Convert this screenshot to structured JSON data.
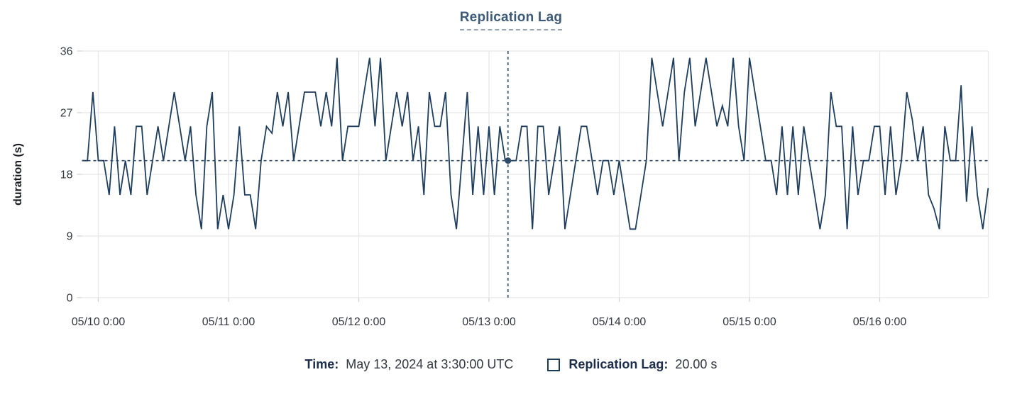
{
  "title": "Replication Lag",
  "legend": {
    "time_label": "Time:",
    "time_value": "May 13, 2024 at 3:30:00 UTC",
    "series_label": "Replication Lag:",
    "series_value": "20.00 s",
    "swatch_icon": "square-outline-icon"
  },
  "colors": {
    "line": "#1f3d5c",
    "crosshair": "#2e4c6a",
    "grid": "#e8e8e8",
    "tick_mark": "#d4d4d4",
    "tick_text": "#343741",
    "axis_title": "#1a1c21",
    "title": "#3d5a78",
    "underline": "#97a7b8",
    "legend_label": "#1c2e4a",
    "legend_value": "#33373f",
    "swatch": "#1d3a57"
  },
  "chart_data": {
    "type": "line",
    "title": "Replication Lag",
    "xlabel": "",
    "ylabel": "duration (s)",
    "ylim": [
      0,
      36
    ],
    "y_ticks": [
      0,
      9,
      18,
      27,
      36
    ],
    "y_tick_labels": [
      "0",
      "9",
      "18",
      "27",
      "36"
    ],
    "x_tick_labels": [
      "05/10 0:00",
      "05/11 0:00",
      "05/12 0:00",
      "05/13 0:00",
      "05/14 0:00",
      "05/15 0:00",
      "05/16 0:00"
    ],
    "x_tick_hours": [
      0,
      24,
      48,
      72,
      96,
      120,
      144
    ],
    "x_unit": "hours since 05/10 00:00 UTC",
    "x_start_hours": -3,
    "step_hours": 1,
    "grid": true,
    "legend_position": "bottom",
    "values": [
      20,
      20,
      30,
      20,
      20,
      15,
      25,
      15,
      20,
      15,
      25,
      25,
      15,
      20,
      25,
      20,
      25,
      30,
      25,
      20,
      25,
      15,
      10,
      25,
      30,
      10,
      15,
      10,
      15,
      25,
      15,
      15,
      10,
      20,
      25,
      24,
      30,
      25,
      30,
      20,
      25,
      30,
      30,
      30,
      25,
      30,
      25,
      35,
      20,
      25,
      25,
      25,
      30,
      35,
      25,
      35,
      20,
      25,
      30,
      25,
      30,
      20,
      25,
      15,
      30,
      25,
      25,
      30,
      15,
      10,
      20,
      30,
      15,
      25,
      15,
      25,
      15,
      25,
      20,
      20,
      20,
      25,
      25,
      10,
      25,
      25,
      15,
      20,
      25,
      10,
      15,
      20,
      25,
      25,
      20,
      15,
      20,
      20,
      15,
      20,
      15,
      10,
      10,
      15,
      20,
      35,
      30,
      25,
      30,
      35,
      20,
      30,
      35,
      25,
      30,
      35,
      30,
      25,
      28,
      25,
      35,
      25,
      20,
      35,
      30,
      25,
      20,
      20,
      15,
      25,
      15,
      25,
      15,
      25,
      20,
      15,
      10,
      15,
      30,
      25,
      25,
      10,
      25,
      15,
      20,
      20,
      25,
      25,
      15,
      25,
      15,
      20,
      30,
      26,
      20,
      25,
      15,
      13,
      10,
      25,
      20,
      20,
      31,
      14,
      25,
      15,
      10,
      16
    ],
    "crosshair": {
      "x_hours": 75.5,
      "time": "May 13, 2024 at 3:30:00 UTC",
      "y_value": 20,
      "value_label": "20.00 s"
    }
  }
}
